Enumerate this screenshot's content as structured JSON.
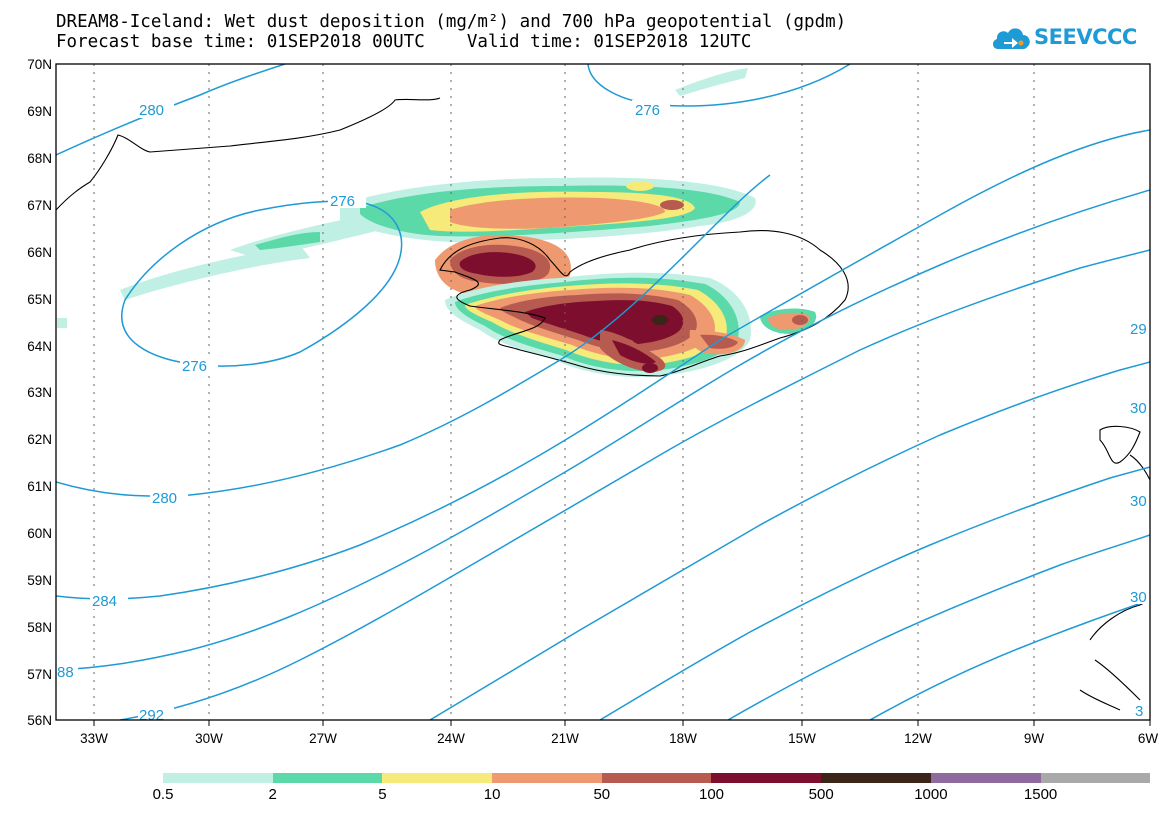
{
  "header": {
    "title_line1": "DREAM8-Iceland: Wet dust deposition (mg/m²) and 700 hPa geopotential (gpdm)",
    "title_line2": "Forecast base time: 01SEP2018 00UTC    Valid time: 01SEP2018 12UTC"
  },
  "logo": {
    "text": "SEEVCCC",
    "icon": "cloud-icon",
    "color": "#1e9ad6"
  },
  "map": {
    "lat_labels": [
      "70N",
      "69N",
      "68N",
      "67N",
      "66N",
      "65N",
      "64N",
      "63N",
      "62N",
      "61N",
      "60N",
      "59N",
      "58N",
      "57N",
      "56N"
    ],
    "lon_labels": [
      "33W",
      "30W",
      "27W",
      "24W",
      "21W",
      "18W",
      "15W",
      "12W",
      "9W",
      "6W"
    ],
    "contour_color": "#1e9ad6",
    "contour_labels": [
      "280",
      "276",
      "276",
      "276",
      "280",
      "284",
      "88",
      "292",
      "29",
      "30",
      "30",
      "30",
      "3"
    ]
  },
  "legend": {
    "colors": [
      "#bff0e3",
      "#5cd9a8",
      "#f5ea7a",
      "#ee9970",
      "#b75a50",
      "#7d0e2e",
      "#3b2518",
      "#8e6a9e",
      "#a9a9a9"
    ],
    "labels": [
      "0.5",
      "2",
      "5",
      "10",
      "50",
      "100",
      "500",
      "1000",
      "1500"
    ]
  }
}
